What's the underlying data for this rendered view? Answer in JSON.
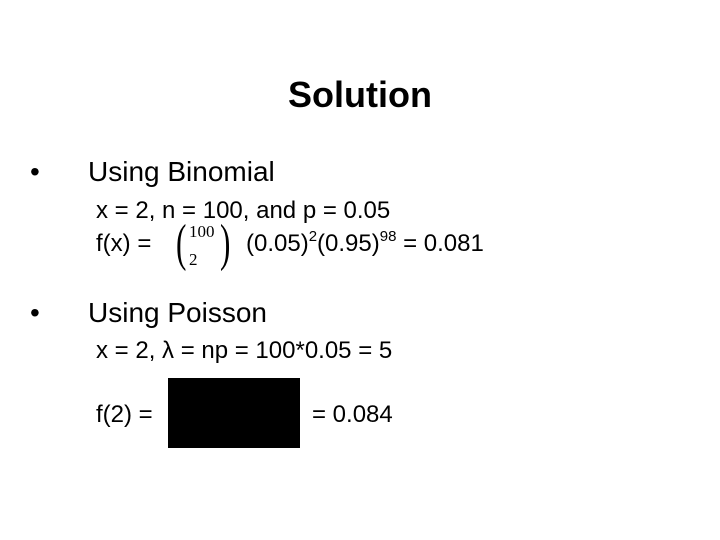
{
  "slide": {
    "title": "Solution",
    "binomial": {
      "bullet": "•",
      "heading": "Using Binomial",
      "params": "x = 2, n = 100, and p = 0.05",
      "formula_lhs": "f(x) =",
      "coef_top": "100",
      "coef_bottom": "2",
      "term1": "(0.05)",
      "exp1": "2",
      "term2": "(0.95)",
      "exp2": "98",
      "result": "= 0.081"
    },
    "poisson": {
      "bullet": "•",
      "heading": "Using Poisson",
      "params": "x = 2, λ = np = 100*0.05 = 5",
      "formula_lhs": "f(2) =",
      "result": "= 0.084"
    }
  }
}
